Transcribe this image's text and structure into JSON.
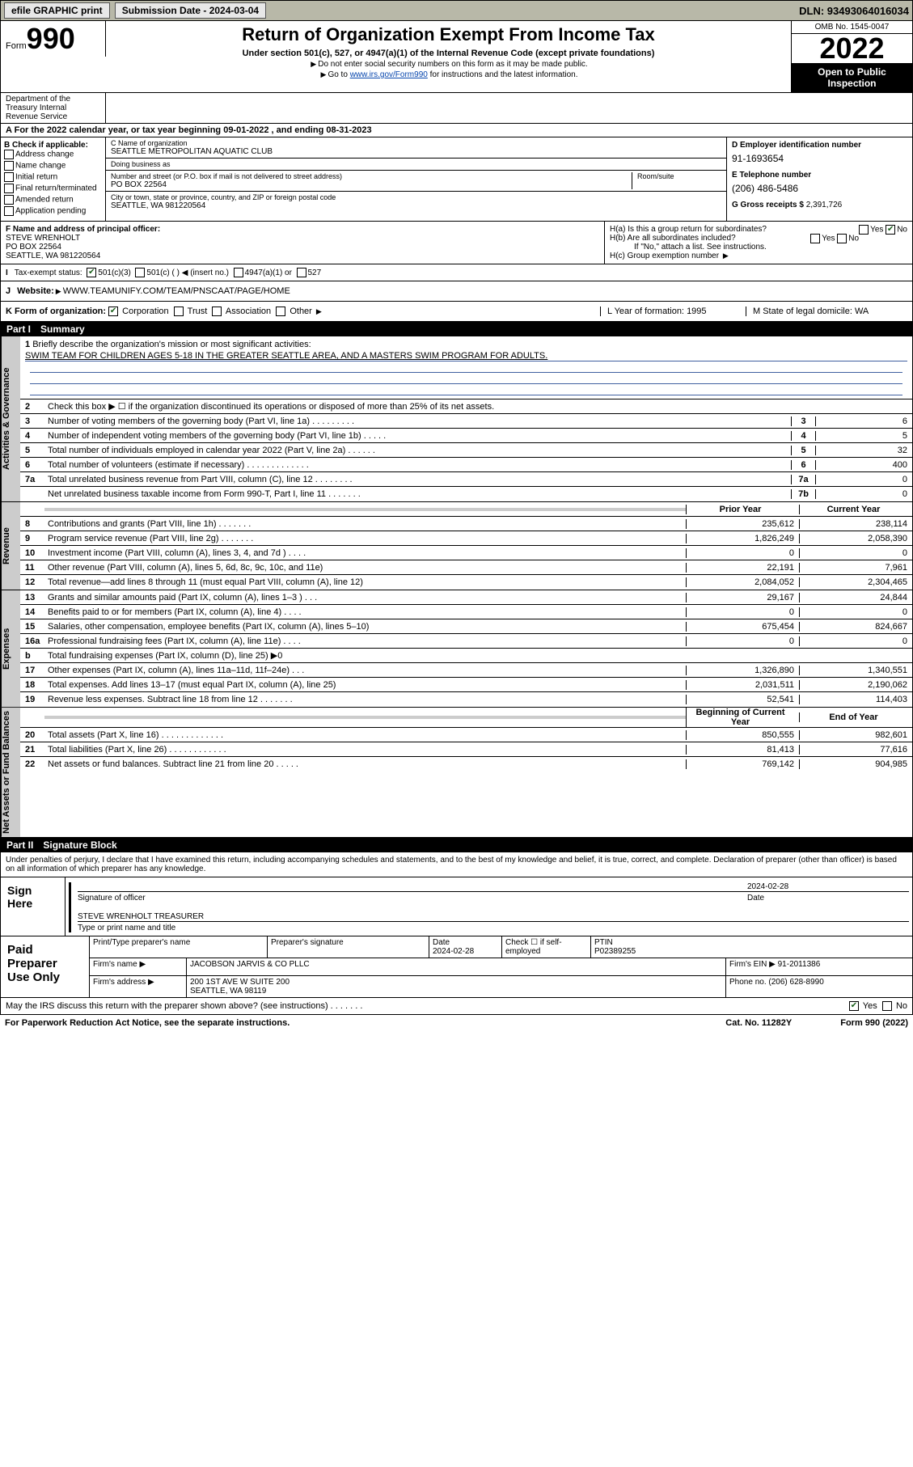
{
  "topbar": {
    "efile": "efile GRAPHIC print",
    "submission_label": "Submission Date - 2024-03-04",
    "dln_label": "DLN: 93493064016034"
  },
  "header": {
    "form_prefix": "Form",
    "form_number": "990",
    "title": "Return of Organization Exempt From Income Tax",
    "subtitle": "Under section 501(c), 527, or 4947(a)(1) of the Internal Revenue Code (except private foundations)",
    "note1": "Do not enter social security numbers on this form as it may be made public.",
    "note2_prefix": "Go to ",
    "note2_link": "www.irs.gov/Form990",
    "note2_suffix": " for instructions and the latest information.",
    "omb": "OMB No. 1545-0047",
    "year": "2022",
    "open_public": "Open to Public Inspection",
    "dept": "Department of the Treasury Internal Revenue Service"
  },
  "line_a": {
    "text": "For the 2022 calendar year, or tax year beginning 09-01-2022    , and ending 08-31-2023"
  },
  "section_b": {
    "label": "B Check if applicable:",
    "opts": [
      "Address change",
      "Name change",
      "Initial return",
      "Final return/terminated",
      "Amended return",
      "Application pending"
    ]
  },
  "section_c": {
    "name_label": "C Name of organization",
    "name": "SEATTLE METROPOLITAN AQUATIC CLUB",
    "dba_label": "Doing business as",
    "dba": "",
    "addr_label": "Number and street (or P.O. box if mail is not delivered to street address)",
    "room_label": "Room/suite",
    "addr": "PO BOX 22564",
    "city_label": "City or town, state or province, country, and ZIP or foreign postal code",
    "city": "SEATTLE, WA  981220564"
  },
  "section_d": {
    "label": "D Employer identification number",
    "value": "91-1693654"
  },
  "section_e": {
    "label": "E Telephone number",
    "value": "(206) 486-5486"
  },
  "section_g": {
    "label": "G Gross receipts $",
    "value": "2,391,726"
  },
  "section_f": {
    "label": "F Name and address of principal officer:",
    "name": "STEVE WRENHOLT",
    "addr1": "PO BOX 22564",
    "addr2": "SEATTLE, WA  981220564"
  },
  "section_h": {
    "ha": "H(a)  Is this a group return for subordinates?",
    "hb": "H(b)  Are all subordinates included?",
    "hb_note": "If \"No,\" attach a list. See instructions.",
    "hc": "H(c)  Group exemption number",
    "yes": "Yes",
    "no": "No"
  },
  "section_i": {
    "label": "Tax-exempt status:",
    "opts": [
      "501(c)(3)",
      "501(c) (  ) ◀ (insert no.)",
      "4947(a)(1) or",
      "527"
    ]
  },
  "section_j": {
    "label": "Website:",
    "value": "WWW.TEAMUNIFY.COM/TEAM/PNSCAAT/PAGE/HOME"
  },
  "section_k": {
    "label": "K Form of organization:",
    "opts": [
      "Corporation",
      "Trust",
      "Association",
      "Other"
    ],
    "l_label": "L Year of formation:",
    "l_value": "1995",
    "m_label": "M State of legal domicile:",
    "m_value": "WA"
  },
  "part1": {
    "label": "Part I",
    "title": "Summary"
  },
  "mission": {
    "prompt": "Briefly describe the organization's mission or most significant activities:",
    "text": "SWIM TEAM FOR CHILDREN AGES 5-18 IN THE GREATER SEATTLE AREA, AND A MASTERS SWIM PROGRAM FOR ADULTS."
  },
  "governance": {
    "side": "Activities & Governance",
    "line2": "Check this box ▶ ☐  if the organization discontinued its operations or disposed of more than 25% of its net assets.",
    "lines": [
      {
        "n": "3",
        "d": "Number of voting members of the governing body (Part VI, line 1a)  .   .   .   .   .   .   .   .   .",
        "box": "3",
        "v": "6"
      },
      {
        "n": "4",
        "d": "Number of independent voting members of the governing body (Part VI, line 1b)    .   .   .   .   .",
        "box": "4",
        "v": "5"
      },
      {
        "n": "5",
        "d": "Total number of individuals employed in calendar year 2022 (Part V, line 2a)   .   .   .   .   .   .",
        "box": "5",
        "v": "32"
      },
      {
        "n": "6",
        "d": "Total number of volunteers (estimate if necessary)   .   .   .   .   .   .   .   .   .   .   .   .   .",
        "box": "6",
        "v": "400"
      },
      {
        "n": "7a",
        "d": "Total unrelated business revenue from Part VIII, column (C), line 12  .   .   .   .   .   .   .   .",
        "box": "7a",
        "v": "0"
      },
      {
        "n": "",
        "d": "Net unrelated business taxable income from Form 990-T, Part I, line 11    .   .   .   .   .   .   .",
        "box": "7b",
        "v": "0"
      }
    ]
  },
  "revenue": {
    "side": "Revenue",
    "hdr_prior": "Prior Year",
    "hdr_current": "Current Year",
    "lines": [
      {
        "n": "8",
        "d": "Contributions and grants (Part VIII, line 1h)   .   .   .   .   .   .   .",
        "p": "235,612",
        "c": "238,114"
      },
      {
        "n": "9",
        "d": "Program service revenue (Part VIII, line 2g)  .   .   .   .   .   .   .",
        "p": "1,826,249",
        "c": "2,058,390"
      },
      {
        "n": "10",
        "d": "Investment income (Part VIII, column (A), lines 3, 4, and 7d )    .   .   .   .",
        "p": "0",
        "c": "0"
      },
      {
        "n": "11",
        "d": "Other revenue (Part VIII, column (A), lines 5, 6d, 8c, 9c, 10c, and 11e)",
        "p": "22,191",
        "c": "7,961"
      },
      {
        "n": "12",
        "d": "Total revenue—add lines 8 through 11 (must equal Part VIII, column (A), line 12)",
        "p": "2,084,052",
        "c": "2,304,465"
      }
    ]
  },
  "expenses": {
    "side": "Expenses",
    "lines": [
      {
        "n": "13",
        "d": "Grants and similar amounts paid (Part IX, column (A), lines 1–3 )  .   .   .",
        "p": "29,167",
        "c": "24,844"
      },
      {
        "n": "14",
        "d": "Benefits paid to or for members (Part IX, column (A), line 4)  .   .   .   .",
        "p": "0",
        "c": "0"
      },
      {
        "n": "15",
        "d": "Salaries, other compensation, employee benefits (Part IX, column (A), lines 5–10)",
        "p": "675,454",
        "c": "824,667"
      },
      {
        "n": "16a",
        "d": "Professional fundraising fees (Part IX, column (A), line 11e)  .   .   .   .",
        "p": "0",
        "c": "0"
      },
      {
        "n": "b",
        "d": "Total fundraising expenses (Part IX, column (D), line 25) ▶0",
        "p": "",
        "c": "",
        "shade": true
      },
      {
        "n": "17",
        "d": "Other expenses (Part IX, column (A), lines 11a–11d, 11f–24e)   .   .   .",
        "p": "1,326,890",
        "c": "1,340,551"
      },
      {
        "n": "18",
        "d": "Total expenses. Add lines 13–17 (must equal Part IX, column (A), line 25)",
        "p": "2,031,511",
        "c": "2,190,062"
      },
      {
        "n": "19",
        "d": "Revenue less expenses. Subtract line 18 from line 12  .   .   .   .   .   .   .",
        "p": "52,541",
        "c": "114,403"
      }
    ]
  },
  "netassets": {
    "side": "Net Assets or Fund Balances",
    "hdr_prior": "Beginning of Current Year",
    "hdr_current": "End of Year",
    "lines": [
      {
        "n": "20",
        "d": "Total assets (Part X, line 16)  .   .   .   .   .   .   .   .   .   .   .   .   .",
        "p": "850,555",
        "c": "982,601"
      },
      {
        "n": "21",
        "d": "Total liabilities (Part X, line 26)   .   .   .   .   .   .   .   .   .   .   .   .",
        "p": "81,413",
        "c": "77,616"
      },
      {
        "n": "22",
        "d": "Net assets or fund balances. Subtract line 21 from line 20   .   .   .   .   .",
        "p": "769,142",
        "c": "904,985"
      }
    ]
  },
  "part2": {
    "label": "Part II",
    "title": "Signature Block"
  },
  "sig_declare": "Under penalties of perjury, I declare that I have examined this return, including accompanying schedules and statements, and to the best of my knowledge and belief, it is true, correct, and complete. Declaration of preparer (other than officer) is based on all information of which preparer has any knowledge.",
  "sign_here": {
    "label": "Sign Here",
    "sig_label": "Signature of officer",
    "date_label": "Date",
    "date": "2024-02-28",
    "name": "STEVE WRENHOLT TREASURER",
    "name_label": "Type or print name and title"
  },
  "preparer": {
    "label": "Paid Preparer Use Only",
    "cols": [
      "Print/Type preparer's name",
      "Preparer's signature",
      "Date",
      "",
      "PTIN"
    ],
    "date": "2024-02-28",
    "check_label": "Check ☐ if self-employed",
    "ptin": "P02389255",
    "firm_name_label": "Firm's name    ▶",
    "firm_name": "JACOBSON JARVIS & CO PLLC",
    "firm_ein_label": "Firm's EIN ▶",
    "firm_ein": "91-2011386",
    "firm_addr_label": "Firm's address ▶",
    "firm_addr1": "200 1ST AVE W SUITE 200",
    "firm_addr2": "SEATTLE, WA  98119",
    "phone_label": "Phone no.",
    "phone": "(206) 628-8990"
  },
  "discuss": {
    "text": "May the IRS discuss this return with the preparer shown above? (see instructions)   .   .   .   .   .   .   .",
    "yes": "Yes",
    "no": "No"
  },
  "footer": {
    "left": "For Paperwork Reduction Act Notice, see the separate instructions.",
    "mid": "Cat. No. 11282Y",
    "right": "Form 990 (2022)"
  }
}
